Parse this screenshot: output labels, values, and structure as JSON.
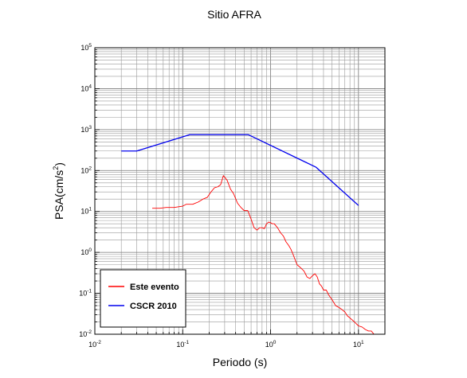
{
  "chart_data": {
    "type": "line",
    "title": "Sitio AFRA",
    "xlabel": "Periodo (s)",
    "ylabel_base": "PSA(cm/s",
    "ylabel_sup": "2",
    "ylabel_close": ")",
    "x_scale": "log",
    "y_scale": "log",
    "xlim": [
      0.01,
      20
    ],
    "ylim": [
      0.01,
      100000
    ],
    "grid": true,
    "legend_position": "bottom-left",
    "x_ticks": [
      {
        "base": "10",
        "exp": "-2"
      },
      {
        "base": "10",
        "exp": "-1"
      },
      {
        "base": "10",
        "exp": "0"
      },
      {
        "base": "10",
        "exp": "1"
      }
    ],
    "y_ticks": [
      {
        "base": "10",
        "exp": "-2"
      },
      {
        "base": "10",
        "exp": "-1"
      },
      {
        "base": "10",
        "exp": "0"
      },
      {
        "base": "10",
        "exp": "1"
      },
      {
        "base": "10",
        "exp": "2"
      },
      {
        "base": "10",
        "exp": "3"
      },
      {
        "base": "10",
        "exp": "4"
      },
      {
        "base": "10",
        "exp": "5"
      }
    ],
    "series": [
      {
        "name": "Este evento",
        "color": "#ff0000",
        "x": [
          0.045,
          0.055,
          0.065,
          0.08,
          0.09,
          0.1,
          0.11,
          0.13,
          0.15,
          0.17,
          0.19,
          0.21,
          0.23,
          0.25,
          0.27,
          0.29,
          0.32,
          0.35,
          0.38,
          0.42,
          0.46,
          0.5,
          0.55,
          0.6,
          0.65,
          0.7,
          0.75,
          0.8,
          0.85,
          0.9,
          0.95,
          1.0,
          1.05,
          1.1,
          1.2,
          1.3,
          1.4,
          1.5,
          1.6,
          1.7,
          1.8,
          2.0,
          2.2,
          2.4,
          2.6,
          2.8,
          3.0,
          3.2,
          3.4,
          3.6,
          3.8,
          4.0,
          4.3,
          4.6,
          5.0,
          5.5,
          6.0,
          6.5,
          7.0,
          7.5,
          8.0,
          9.0,
          10.0,
          11.0,
          12.0,
          13.0,
          14.0,
          15.0
        ],
        "y": [
          12,
          12,
          12.5,
          12.5,
          13,
          13.5,
          15,
          15,
          17,
          20,
          22,
          30,
          38,
          40,
          45,
          75,
          58,
          35,
          27,
          16,
          12.5,
          10.5,
          10.5,
          6.5,
          4,
          3.5,
          4,
          4,
          3.8,
          5,
          5.5,
          5.3,
          5,
          5,
          4,
          3,
          2.5,
          1.8,
          1.5,
          1.2,
          0.9,
          0.5,
          0.42,
          0.35,
          0.25,
          0.23,
          0.27,
          0.3,
          0.25,
          0.17,
          0.15,
          0.12,
          0.12,
          0.09,
          0.07,
          0.05,
          0.045,
          0.04,
          0.035,
          0.028,
          0.025,
          0.02,
          0.016,
          0.015,
          0.013,
          0.012,
          0.012,
          0.01
        ]
      },
      {
        "name": "CSCR 2010",
        "color": "#0000ee",
        "x": [
          0.02,
          0.03,
          0.12,
          0.56,
          3.3,
          10
        ],
        "y": [
          300,
          300,
          750,
          750,
          120,
          14
        ]
      }
    ]
  }
}
